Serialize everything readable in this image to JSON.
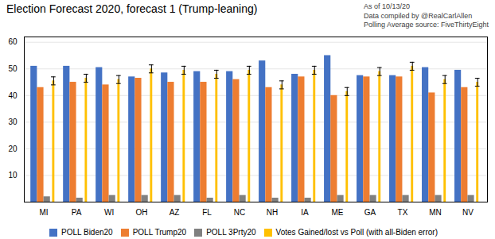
{
  "chart_data": {
    "type": "bar",
    "title": "Election Forecast 2020, forecast 1 (Trump-leaning)",
    "annotation": "As of 10/13/20\nData compiled by @RealCarlAllen\nPolling Average source: FiveThirtyEight",
    "categories": [
      "MI",
      "PA",
      "WI",
      "OH",
      "AZ",
      "FL",
      "NC",
      "NH",
      "IA",
      "ME",
      "GA",
      "TX",
      "MN",
      "NV"
    ],
    "series": [
      {
        "name": "POLL Biden20",
        "color": "#4472C4",
        "values": [
          51,
          51,
          50.5,
          47,
          48.5,
          49,
          49,
          53,
          48,
          55,
          47.5,
          47.5,
          50.5,
          49.5
        ]
      },
      {
        "name": "POLL Trump20",
        "color": "#ED7D31",
        "values": [
          43,
          45,
          44,
          46.5,
          45,
          45,
          46,
          43,
          47,
          40,
          47,
          47,
          41,
          43
        ]
      },
      {
        "name": "POLL 3Prty20",
        "color": "#808080",
        "values": [
          2,
          1.5,
          2.5,
          2.5,
          2.5,
          1.5,
          2.5,
          1.5,
          1.5,
          2.5,
          2.5,
          2.5,
          2.5,
          2.5
        ]
      },
      {
        "name": "Votes Gained/lost vs Poll (with all-Biden error)",
        "color": "#FFC000",
        "values": [
          45.5,
          46.5,
          46,
          50,
          49.5,
          48,
          49.5,
          44,
          49.5,
          41.5,
          49,
          51,
          46,
          45
        ],
        "error": 1.5
      }
    ],
    "ylim": [
      0,
      62
    ],
    "yticks": [
      {
        "value": 0,
        "label": ""
      },
      10,
      20,
      30,
      40,
      50,
      60
    ],
    "grid": true,
    "legend": "bottom"
  }
}
